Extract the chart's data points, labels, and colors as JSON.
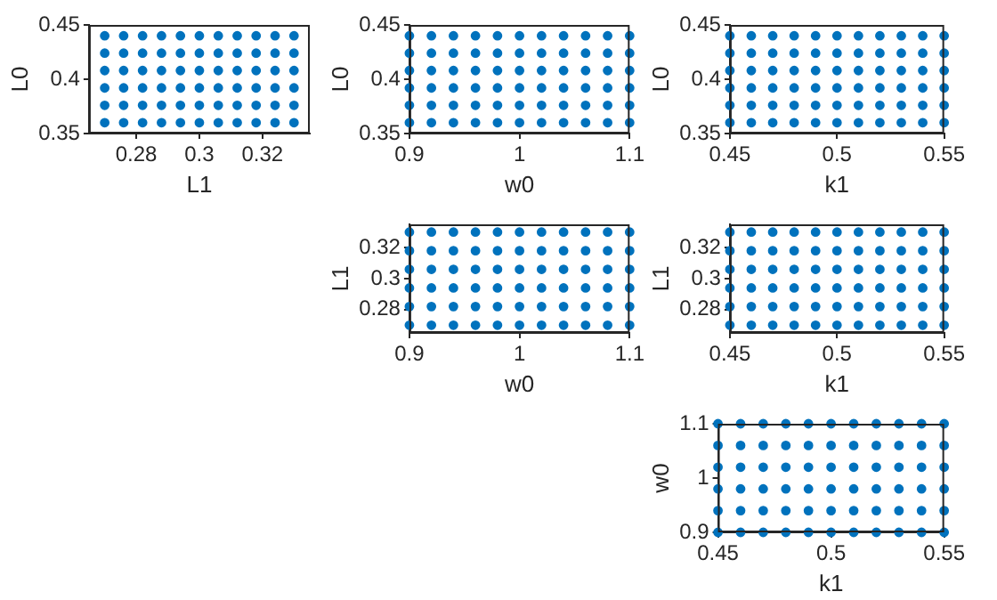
{
  "chart_data": [
    {
      "type": "scatter",
      "xlabel": "L1",
      "ylabel": "L0",
      "xlim": [
        0.265,
        0.335
      ],
      "ylim": [
        0.35,
        0.45
      ],
      "xticks": [
        0.28,
        0.3,
        0.32
      ],
      "yticks": [
        0.35,
        0.4,
        0.45
      ],
      "marker": "circle",
      "grid": false,
      "series": [
        {
          "color": "#0072bd",
          "x": [
            0.27,
            0.276,
            0.282,
            0.288,
            0.294,
            0.3,
            0.306,
            0.312,
            0.318,
            0.324,
            0.33
          ],
          "values": [
            0.36,
            0.36,
            0.36,
            0.36,
            0.36,
            0.36,
            0.36,
            0.36,
            0.36,
            0.36,
            0.36
          ]
        },
        {
          "color": "#0072bd",
          "x": [
            0.27,
            0.276,
            0.282,
            0.288,
            0.294,
            0.3,
            0.306,
            0.312,
            0.318,
            0.324,
            0.33
          ],
          "values": [
            0.376,
            0.376,
            0.376,
            0.376,
            0.376,
            0.376,
            0.376,
            0.376,
            0.376,
            0.376,
            0.376
          ]
        },
        {
          "color": "#0072bd",
          "x": [
            0.27,
            0.276,
            0.282,
            0.288,
            0.294,
            0.3,
            0.306,
            0.312,
            0.318,
            0.324,
            0.33
          ],
          "values": [
            0.392,
            0.392,
            0.392,
            0.392,
            0.392,
            0.392,
            0.392,
            0.392,
            0.392,
            0.392,
            0.392
          ]
        },
        {
          "color": "#0072bd",
          "x": [
            0.27,
            0.276,
            0.282,
            0.288,
            0.294,
            0.3,
            0.306,
            0.312,
            0.318,
            0.324,
            0.33
          ],
          "values": [
            0.408,
            0.408,
            0.408,
            0.408,
            0.408,
            0.408,
            0.408,
            0.408,
            0.408,
            0.408,
            0.408
          ]
        },
        {
          "color": "#0072bd",
          "x": [
            0.27,
            0.276,
            0.282,
            0.288,
            0.294,
            0.3,
            0.306,
            0.312,
            0.318,
            0.324,
            0.33
          ],
          "values": [
            0.424,
            0.424,
            0.424,
            0.424,
            0.424,
            0.424,
            0.424,
            0.424,
            0.424,
            0.424,
            0.424
          ]
        },
        {
          "color": "#0072bd",
          "x": [
            0.27,
            0.276,
            0.282,
            0.288,
            0.294,
            0.3,
            0.306,
            0.312,
            0.318,
            0.324,
            0.33
          ],
          "values": [
            0.44,
            0.44,
            0.44,
            0.44,
            0.44,
            0.44,
            0.44,
            0.44,
            0.44,
            0.44,
            0.44
          ]
        }
      ]
    },
    {
      "type": "scatter",
      "xlabel": "w0",
      "ylabel": "L0",
      "xlim": [
        0.9,
        1.1
      ],
      "ylim": [
        0.35,
        0.45
      ],
      "xticks": [
        0.9,
        1,
        1.1
      ],
      "yticks": [
        0.35,
        0.4,
        0.45
      ],
      "marker": "circle",
      "grid": false,
      "series": [
        {
          "color": "#0072bd",
          "x": [
            0.9,
            0.92,
            0.94,
            0.96,
            0.98,
            1,
            1.02,
            1.04,
            1.06,
            1.08,
            1.1
          ],
          "values": [
            0.36,
            0.36,
            0.36,
            0.36,
            0.36,
            0.36,
            0.36,
            0.36,
            0.36,
            0.36,
            0.36
          ]
        },
        {
          "color": "#0072bd",
          "x": [
            0.9,
            0.92,
            0.94,
            0.96,
            0.98,
            1,
            1.02,
            1.04,
            1.06,
            1.08,
            1.1
          ],
          "values": [
            0.376,
            0.376,
            0.376,
            0.376,
            0.376,
            0.376,
            0.376,
            0.376,
            0.376,
            0.376,
            0.376
          ]
        },
        {
          "color": "#0072bd",
          "x": [
            0.9,
            0.92,
            0.94,
            0.96,
            0.98,
            1,
            1.02,
            1.04,
            1.06,
            1.08,
            1.1
          ],
          "values": [
            0.392,
            0.392,
            0.392,
            0.392,
            0.392,
            0.392,
            0.392,
            0.392,
            0.392,
            0.392,
            0.392
          ]
        },
        {
          "color": "#0072bd",
          "x": [
            0.9,
            0.92,
            0.94,
            0.96,
            0.98,
            1,
            1.02,
            1.04,
            1.06,
            1.08,
            1.1
          ],
          "values": [
            0.408,
            0.408,
            0.408,
            0.408,
            0.408,
            0.408,
            0.408,
            0.408,
            0.408,
            0.408,
            0.408
          ]
        },
        {
          "color": "#0072bd",
          "x": [
            0.9,
            0.92,
            0.94,
            0.96,
            0.98,
            1,
            1.02,
            1.04,
            1.06,
            1.08,
            1.1
          ],
          "values": [
            0.424,
            0.424,
            0.424,
            0.424,
            0.424,
            0.424,
            0.424,
            0.424,
            0.424,
            0.424,
            0.424
          ]
        },
        {
          "color": "#0072bd",
          "x": [
            0.9,
            0.92,
            0.94,
            0.96,
            0.98,
            1,
            1.02,
            1.04,
            1.06,
            1.08,
            1.1
          ],
          "values": [
            0.44,
            0.44,
            0.44,
            0.44,
            0.44,
            0.44,
            0.44,
            0.44,
            0.44,
            0.44,
            0.44
          ]
        }
      ]
    },
    {
      "type": "scatter",
      "xlabel": "k1",
      "ylabel": "L0",
      "xlim": [
        0.45,
        0.55
      ],
      "ylim": [
        0.35,
        0.45
      ],
      "xticks": [
        0.45,
        0.5,
        0.55
      ],
      "yticks": [
        0.35,
        0.4,
        0.45
      ],
      "marker": "circle",
      "grid": false,
      "series": [
        {
          "color": "#0072bd",
          "x": [
            0.45,
            0.46,
            0.47,
            0.48,
            0.49,
            0.5,
            0.51,
            0.52,
            0.53,
            0.54,
            0.55
          ],
          "values": [
            0.36,
            0.36,
            0.36,
            0.36,
            0.36,
            0.36,
            0.36,
            0.36,
            0.36,
            0.36,
            0.36
          ]
        },
        {
          "color": "#0072bd",
          "x": [
            0.45,
            0.46,
            0.47,
            0.48,
            0.49,
            0.5,
            0.51,
            0.52,
            0.53,
            0.54,
            0.55
          ],
          "values": [
            0.376,
            0.376,
            0.376,
            0.376,
            0.376,
            0.376,
            0.376,
            0.376,
            0.376,
            0.376,
            0.376
          ]
        },
        {
          "color": "#0072bd",
          "x": [
            0.45,
            0.46,
            0.47,
            0.48,
            0.49,
            0.5,
            0.51,
            0.52,
            0.53,
            0.54,
            0.55
          ],
          "values": [
            0.392,
            0.392,
            0.392,
            0.392,
            0.392,
            0.392,
            0.392,
            0.392,
            0.392,
            0.392,
            0.392
          ]
        },
        {
          "color": "#0072bd",
          "x": [
            0.45,
            0.46,
            0.47,
            0.48,
            0.49,
            0.5,
            0.51,
            0.52,
            0.53,
            0.54,
            0.55
          ],
          "values": [
            0.408,
            0.408,
            0.408,
            0.408,
            0.408,
            0.408,
            0.408,
            0.408,
            0.408,
            0.408,
            0.408
          ]
        },
        {
          "color": "#0072bd",
          "x": [
            0.45,
            0.46,
            0.47,
            0.48,
            0.49,
            0.5,
            0.51,
            0.52,
            0.53,
            0.54,
            0.55
          ],
          "values": [
            0.424,
            0.424,
            0.424,
            0.424,
            0.424,
            0.424,
            0.424,
            0.424,
            0.424,
            0.424,
            0.424
          ]
        },
        {
          "color": "#0072bd",
          "x": [
            0.45,
            0.46,
            0.47,
            0.48,
            0.49,
            0.5,
            0.51,
            0.52,
            0.53,
            0.54,
            0.55
          ],
          "values": [
            0.44,
            0.44,
            0.44,
            0.44,
            0.44,
            0.44,
            0.44,
            0.44,
            0.44,
            0.44,
            0.44
          ]
        }
      ]
    },
    {
      "type": "scatter",
      "xlabel": "w0",
      "ylabel": "L1",
      "xlim": [
        0.9,
        1.1
      ],
      "ylim": [
        0.265,
        0.335
      ],
      "xticks": [
        0.9,
        1,
        1.1
      ],
      "yticks": [
        0.28,
        0.3,
        0.32
      ],
      "marker": "circle",
      "grid": false,
      "series": [
        {
          "color": "#0072bd",
          "x": [
            0.9,
            0.92,
            0.94,
            0.96,
            0.98,
            1,
            1.02,
            1.04,
            1.06,
            1.08,
            1.1
          ],
          "values": [
            0.27,
            0.27,
            0.27,
            0.27,
            0.27,
            0.27,
            0.27,
            0.27,
            0.27,
            0.27,
            0.27
          ]
        },
        {
          "color": "#0072bd",
          "x": [
            0.9,
            0.92,
            0.94,
            0.96,
            0.98,
            1,
            1.02,
            1.04,
            1.06,
            1.08,
            1.1
          ],
          "values": [
            0.282,
            0.282,
            0.282,
            0.282,
            0.282,
            0.282,
            0.282,
            0.282,
            0.282,
            0.282,
            0.282
          ]
        },
        {
          "color": "#0072bd",
          "x": [
            0.9,
            0.92,
            0.94,
            0.96,
            0.98,
            1,
            1.02,
            1.04,
            1.06,
            1.08,
            1.1
          ],
          "values": [
            0.294,
            0.294,
            0.294,
            0.294,
            0.294,
            0.294,
            0.294,
            0.294,
            0.294,
            0.294,
            0.294
          ]
        },
        {
          "color": "#0072bd",
          "x": [
            0.9,
            0.92,
            0.94,
            0.96,
            0.98,
            1,
            1.02,
            1.04,
            1.06,
            1.08,
            1.1
          ],
          "values": [
            0.306,
            0.306,
            0.306,
            0.306,
            0.306,
            0.306,
            0.306,
            0.306,
            0.306,
            0.306,
            0.306
          ]
        },
        {
          "color": "#0072bd",
          "x": [
            0.9,
            0.92,
            0.94,
            0.96,
            0.98,
            1,
            1.02,
            1.04,
            1.06,
            1.08,
            1.1
          ],
          "values": [
            0.318,
            0.318,
            0.318,
            0.318,
            0.318,
            0.318,
            0.318,
            0.318,
            0.318,
            0.318,
            0.318
          ]
        },
        {
          "color": "#0072bd",
          "x": [
            0.9,
            0.92,
            0.94,
            0.96,
            0.98,
            1,
            1.02,
            1.04,
            1.06,
            1.08,
            1.1
          ],
          "values": [
            0.33,
            0.33,
            0.33,
            0.33,
            0.33,
            0.33,
            0.33,
            0.33,
            0.33,
            0.33,
            0.33
          ]
        }
      ]
    },
    {
      "type": "scatter",
      "xlabel": "k1",
      "ylabel": "L1",
      "xlim": [
        0.45,
        0.55
      ],
      "ylim": [
        0.265,
        0.335
      ],
      "xticks": [
        0.45,
        0.5,
        0.55
      ],
      "yticks": [
        0.28,
        0.3,
        0.32
      ],
      "marker": "circle",
      "grid": false,
      "series": [
        {
          "color": "#0072bd",
          "x": [
            0.45,
            0.46,
            0.47,
            0.48,
            0.49,
            0.5,
            0.51,
            0.52,
            0.53,
            0.54,
            0.55
          ],
          "values": [
            0.27,
            0.27,
            0.27,
            0.27,
            0.27,
            0.27,
            0.27,
            0.27,
            0.27,
            0.27,
            0.27
          ]
        },
        {
          "color": "#0072bd",
          "x": [
            0.45,
            0.46,
            0.47,
            0.48,
            0.49,
            0.5,
            0.51,
            0.52,
            0.53,
            0.54,
            0.55
          ],
          "values": [
            0.282,
            0.282,
            0.282,
            0.282,
            0.282,
            0.282,
            0.282,
            0.282,
            0.282,
            0.282,
            0.282
          ]
        },
        {
          "color": "#0072bd",
          "x": [
            0.45,
            0.46,
            0.47,
            0.48,
            0.49,
            0.5,
            0.51,
            0.52,
            0.53,
            0.54,
            0.55
          ],
          "values": [
            0.294,
            0.294,
            0.294,
            0.294,
            0.294,
            0.294,
            0.294,
            0.294,
            0.294,
            0.294,
            0.294
          ]
        },
        {
          "color": "#0072bd",
          "x": [
            0.45,
            0.46,
            0.47,
            0.48,
            0.49,
            0.5,
            0.51,
            0.52,
            0.53,
            0.54,
            0.55
          ],
          "values": [
            0.306,
            0.306,
            0.306,
            0.306,
            0.306,
            0.306,
            0.306,
            0.306,
            0.306,
            0.306,
            0.306
          ]
        },
        {
          "color": "#0072bd",
          "x": [
            0.45,
            0.46,
            0.47,
            0.48,
            0.49,
            0.5,
            0.51,
            0.52,
            0.53,
            0.54,
            0.55
          ],
          "values": [
            0.318,
            0.318,
            0.318,
            0.318,
            0.318,
            0.318,
            0.318,
            0.318,
            0.318,
            0.318,
            0.318
          ]
        },
        {
          "color": "#0072bd",
          "x": [
            0.45,
            0.46,
            0.47,
            0.48,
            0.49,
            0.5,
            0.51,
            0.52,
            0.53,
            0.54,
            0.55
          ],
          "values": [
            0.33,
            0.33,
            0.33,
            0.33,
            0.33,
            0.33,
            0.33,
            0.33,
            0.33,
            0.33,
            0.33
          ]
        }
      ]
    },
    {
      "type": "scatter",
      "xlabel": "k1",
      "ylabel": "w0",
      "xlim": [
        0.45,
        0.55
      ],
      "ylim": [
        0.9,
        1.1
      ],
      "xticks": [
        0.45,
        0.5,
        0.55
      ],
      "yticks": [
        0.9,
        1,
        1.1
      ],
      "marker": "circle",
      "grid": false,
      "series": [
        {
          "color": "#0072bd",
          "x": [
            0.45,
            0.46,
            0.47,
            0.48,
            0.49,
            0.5,
            0.51,
            0.52,
            0.53,
            0.54,
            0.55
          ],
          "values": [
            0.9,
            0.9,
            0.9,
            0.9,
            0.9,
            0.9,
            0.9,
            0.9,
            0.9,
            0.9,
            0.9
          ]
        },
        {
          "color": "#0072bd",
          "x": [
            0.45,
            0.46,
            0.47,
            0.48,
            0.49,
            0.5,
            0.51,
            0.52,
            0.53,
            0.54,
            0.55
          ],
          "values": [
            0.94,
            0.94,
            0.94,
            0.94,
            0.94,
            0.94,
            0.94,
            0.94,
            0.94,
            0.94,
            0.94
          ]
        },
        {
          "color": "#0072bd",
          "x": [
            0.45,
            0.46,
            0.47,
            0.48,
            0.49,
            0.5,
            0.51,
            0.52,
            0.53,
            0.54,
            0.55
          ],
          "values": [
            0.98,
            0.98,
            0.98,
            0.98,
            0.98,
            0.98,
            0.98,
            0.98,
            0.98,
            0.98,
            0.98
          ]
        },
        {
          "color": "#0072bd",
          "x": [
            0.45,
            0.46,
            0.47,
            0.48,
            0.49,
            0.5,
            0.51,
            0.52,
            0.53,
            0.54,
            0.55
          ],
          "values": [
            1.02,
            1.02,
            1.02,
            1.02,
            1.02,
            1.02,
            1.02,
            1.02,
            1.02,
            1.02,
            1.02
          ]
        },
        {
          "color": "#0072bd",
          "x": [
            0.45,
            0.46,
            0.47,
            0.48,
            0.49,
            0.5,
            0.51,
            0.52,
            0.53,
            0.54,
            0.55
          ],
          "values": [
            1.06,
            1.06,
            1.06,
            1.06,
            1.06,
            1.06,
            1.06,
            1.06,
            1.06,
            1.06,
            1.06
          ]
        },
        {
          "color": "#0072bd",
          "x": [
            0.45,
            0.46,
            0.47,
            0.48,
            0.49,
            0.5,
            0.51,
            0.52,
            0.53,
            0.54,
            0.55
          ],
          "values": [
            1.1,
            1.1,
            1.1,
            1.1,
            1.1,
            1.1,
            1.1,
            1.1,
            1.1,
            1.1,
            1.1
          ]
        }
      ]
    }
  ]
}
